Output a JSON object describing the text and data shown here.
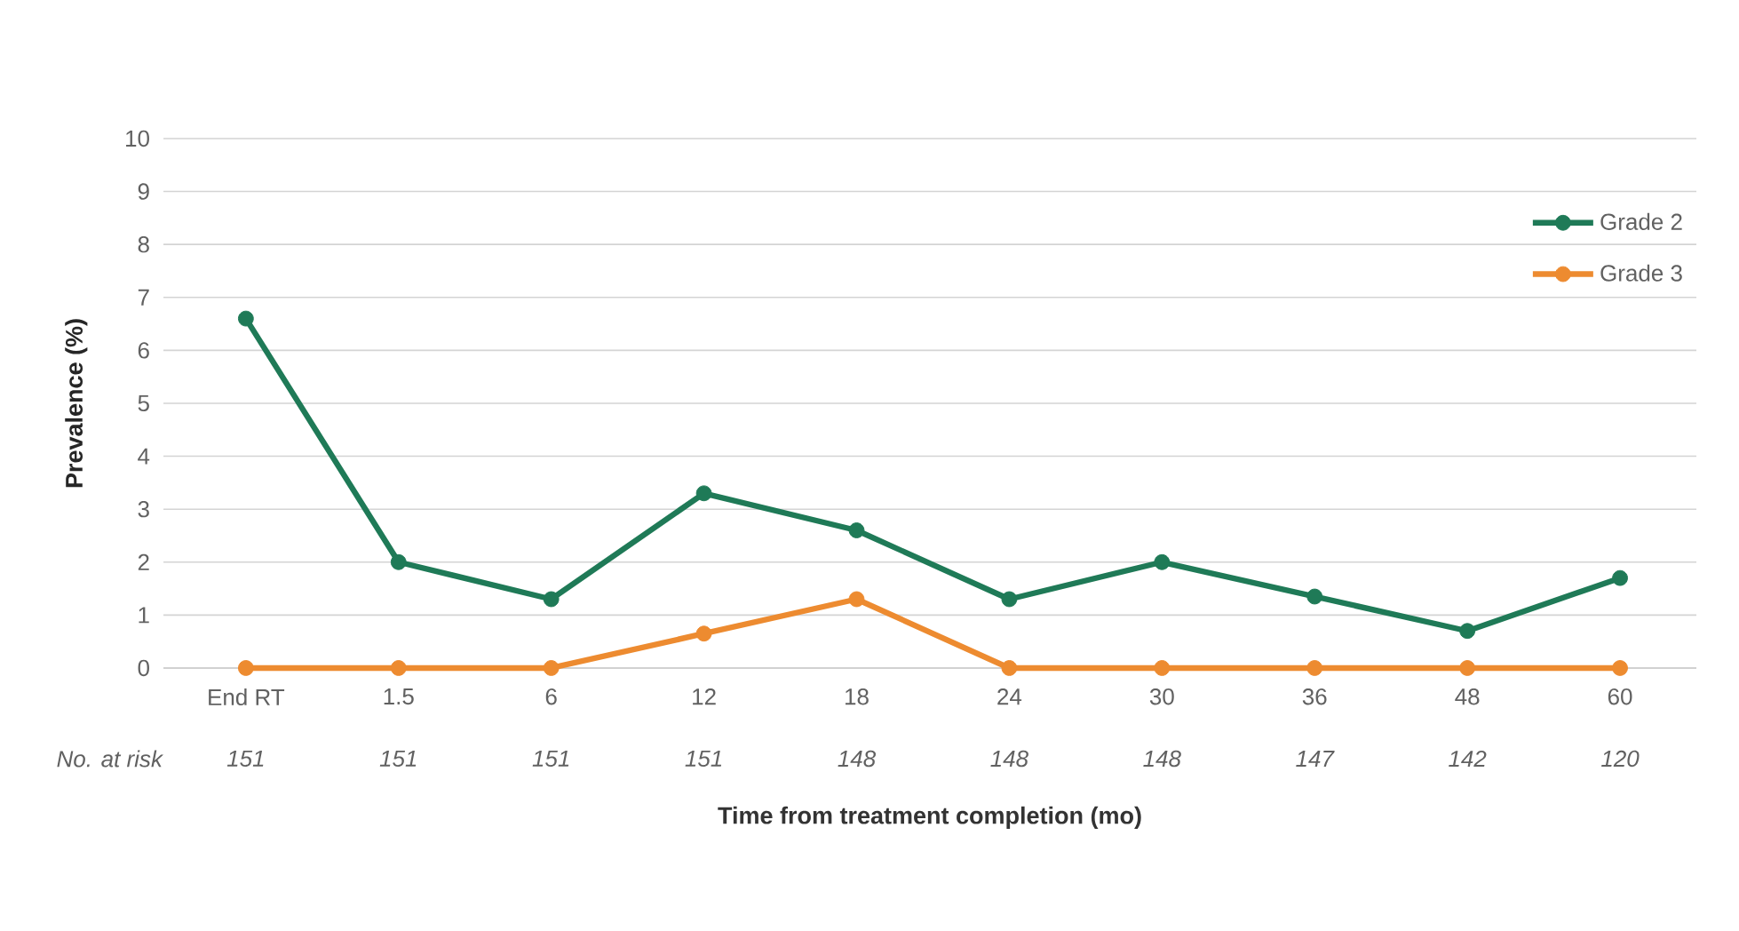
{
  "chart_data": {
    "type": "line",
    "xlabel": "Time from treatment completion (mo)",
    "ylabel": "Prevalence (%)",
    "categories": [
      "End RT",
      "1.5",
      "6",
      "12",
      "18",
      "24",
      "30",
      "36",
      "48",
      "60"
    ],
    "series": [
      {
        "name": "Grade 2",
        "color": "#1f7a57",
        "values": [
          6.6,
          2.0,
          1.3,
          3.3,
          2.6,
          1.3,
          2.0,
          1.35,
          0.7,
          1.7
        ]
      },
      {
        "name": "Grade 3",
        "color": "#ed8b30",
        "values": [
          0,
          0,
          0,
          0.65,
          1.3,
          0,
          0,
          0,
          0,
          0
        ]
      }
    ],
    "ylim": [
      0,
      10
    ],
    "yticks": [
      0,
      1,
      2,
      3,
      4,
      5,
      6,
      7,
      8,
      9,
      10
    ],
    "grid": "y",
    "legend": "top right",
    "marker": "circle",
    "line_style": "solid",
    "annotations": [
      "No. at risk",
      "151",
      "151",
      "151",
      "151",
      "148",
      "148",
      "148",
      "147",
      "142",
      "120"
    ]
  }
}
